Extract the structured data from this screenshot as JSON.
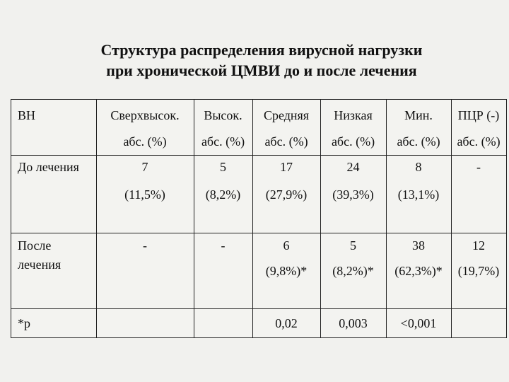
{
  "title": {
    "line1": "Структура распределения вирусной нагрузки",
    "line2": "при хронической ЦМВИ до и после лечения"
  },
  "table": {
    "header": {
      "row_label": "ВН",
      "columns": [
        "Сверхвысок.",
        "Высок.",
        "Средняя",
        "Низкая",
        "Мин.",
        "ПЦР (-)"
      ],
      "units": [
        "абс. (%)",
        "абс. (%)",
        "абс. (%)",
        "абс. (%)",
        "абс. (%)",
        "абс. (%)"
      ]
    },
    "before": {
      "label": "До лечения",
      "values": [
        "7",
        "5",
        "17",
        "24",
        "8",
        "-"
      ],
      "percents": [
        "(11,5%)",
        "(8,2%)",
        "(27,9%)",
        "(39,3%)",
        "(13,1%)",
        ""
      ]
    },
    "after": {
      "label_line1": "После",
      "label_line2": "лечения",
      "values": [
        "-",
        "-",
        "6",
        "5",
        "38",
        "12"
      ],
      "percents": [
        "",
        "",
        "(9,8%)*",
        "(8,2%)*",
        "(62,3%)*",
        "(19,7%)"
      ]
    },
    "p": {
      "label": "*р",
      "values": [
        "",
        "",
        "0,02",
        "0,003",
        "<0,001",
        ""
      ]
    }
  }
}
